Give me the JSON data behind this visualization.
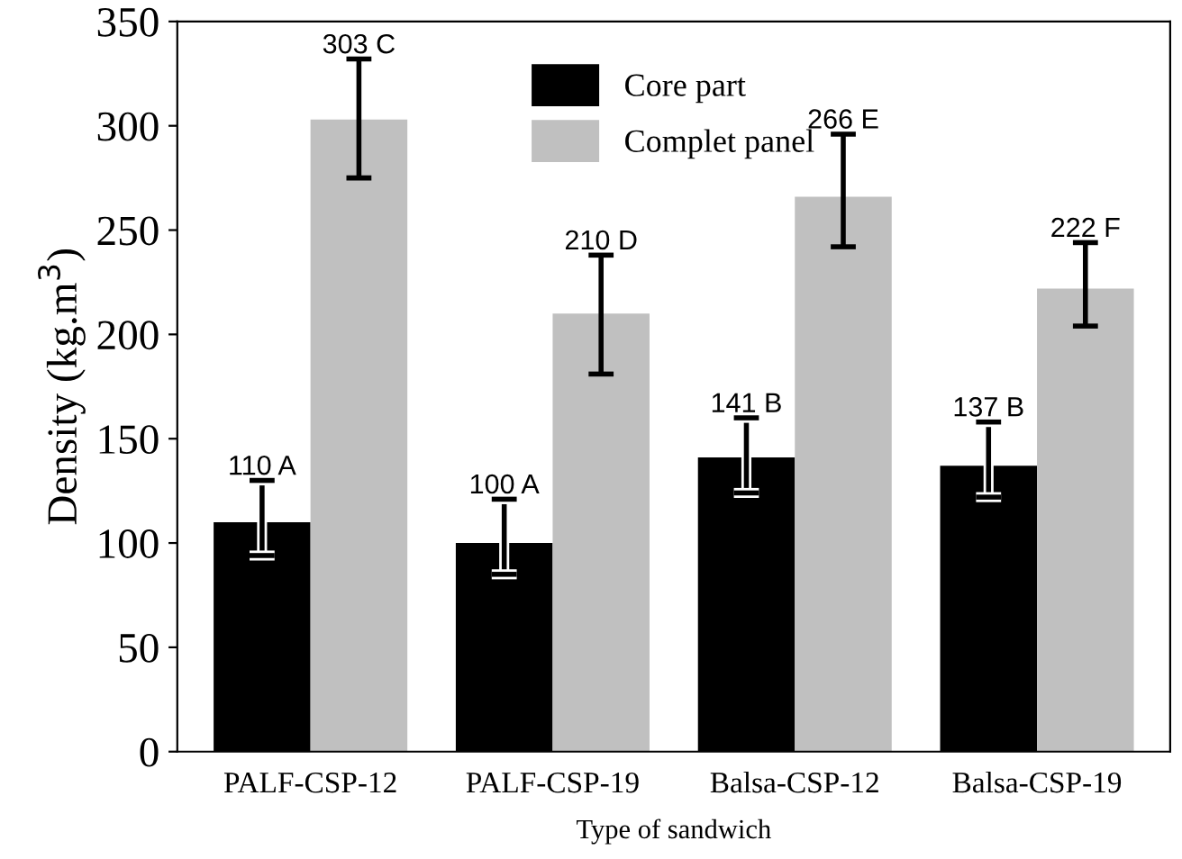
{
  "chart_data": {
    "type": "bar",
    "xlabel": "Type of sandwich",
    "ylabel": "Density (kg.m$^{3}$)",
    "categories": [
      "PALF-CSP-12",
      "PALF-CSP-19",
      "Balsa-CSP-12",
      "Balsa-CSP-19"
    ],
    "series": [
      {
        "name": "Core part",
        "color": "#000000",
        "values": [
          110,
          100,
          141,
          137
        ],
        "value_labels": [
          "110 A",
          "100 A",
          "141 B",
          "137 B"
        ],
        "errors": [
          [
            94,
            130
          ],
          [
            85,
            121
          ],
          [
            124,
            160
          ],
          [
            122,
            158
          ]
        ]
      },
      {
        "name": "Complet panel",
        "color": "#c0c0c0",
        "values": [
          303,
          210,
          266,
          222
        ],
        "value_labels": [
          "303 C",
          "210 D",
          "266 E",
          "222 F"
        ],
        "errors": [
          [
            275,
            332
          ],
          [
            181,
            238
          ],
          [
            242,
            296
          ],
          [
            204,
            244
          ]
        ]
      }
    ],
    "ylim": [
      0,
      350
    ],
    "yticks": [
      0,
      50,
      100,
      150,
      200,
      250,
      300,
      350
    ],
    "grid": false,
    "legend": "top"
  }
}
